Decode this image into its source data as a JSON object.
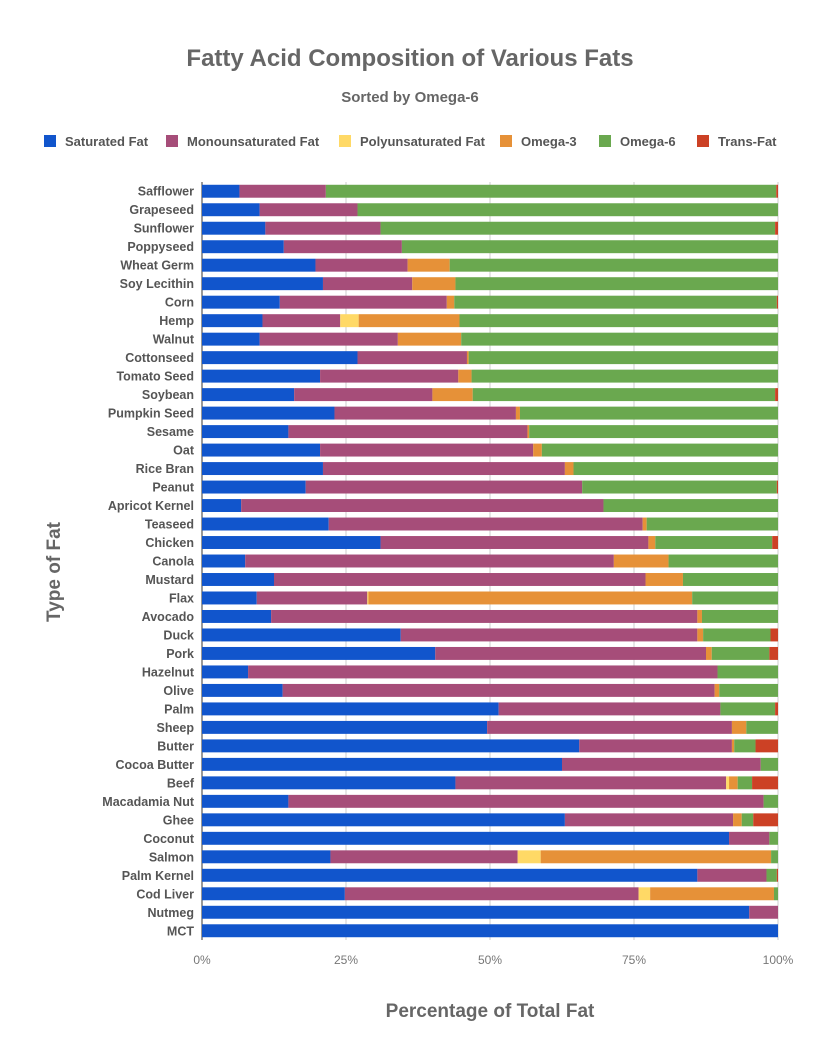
{
  "chart_data": {
    "type": "bar",
    "orientation": "horizontal",
    "stacked": true,
    "title": "Fatty Acid Composition of Various Fats",
    "subtitle": "Sorted by Omega-6",
    "xlabel": "Percentage of Total Fat",
    "ylabel": "Type of Fat",
    "xlim": [
      0,
      100
    ],
    "x_ticks": [
      "0%",
      "25%",
      "50%",
      "75%",
      "100%"
    ],
    "x_tick_values": [
      0,
      25,
      50,
      75,
      100
    ],
    "legend_position": "top",
    "grid": true,
    "categories": [
      "Safflower",
      "Grapeseed",
      "Sunflower",
      "Poppyseed",
      "Wheat Germ",
      "Soy Lecithin",
      "Corn",
      "Hemp",
      "Walnut",
      "Cottonseed",
      "Tomato Seed",
      "Soybean",
      "Pumpkin Seed",
      "Sesame",
      "Oat",
      "Rice Bran",
      "Peanut",
      "Apricot Kernel",
      "Teaseed",
      "Chicken",
      "Canola",
      "Mustard",
      "Flax",
      "Avocado",
      "Duck",
      "Pork",
      "Hazelnut",
      "Olive",
      "Palm",
      "Sheep",
      "Butter",
      "Cocoa Butter",
      "Beef",
      "Macadamia Nut",
      "Ghee",
      "Coconut",
      "Salmon",
      "Palm Kernel",
      "Cod Liver",
      "Nutmeg",
      "MCT"
    ],
    "series": [
      {
        "name": "Saturated Fat",
        "color": "#1155cc",
        "values": [
          6.5,
          10,
          11,
          14.2,
          19.7,
          21,
          13.5,
          10.5,
          10,
          27,
          20.5,
          16,
          23,
          15,
          20.5,
          21,
          18,
          6.8,
          22,
          31,
          7.5,
          12.5,
          9.5,
          12,
          34.5,
          40.5,
          8,
          14,
          51.5,
          49.5,
          65.5,
          62.5,
          44,
          15,
          63,
          91.5,
          22.3,
          86,
          24.8,
          95,
          100
        ]
      },
      {
        "name": "Monounsaturated Fat",
        "color": "#a64d79",
        "values": [
          15,
          17,
          20,
          20.5,
          16,
          15.5,
          29,
          13.5,
          24,
          19,
          24,
          24,
          31.5,
          41.5,
          37,
          42,
          48,
          62.9,
          54.5,
          46.5,
          64,
          64.5,
          19.2,
          74,
          51.5,
          47,
          81.5,
          75,
          38.5,
          42.5,
          26.5,
          34.5,
          47,
          82.5,
          29.2,
          7,
          32.5,
          12,
          51,
          5,
          0
        ]
      },
      {
        "name": "Polyunsaturated Fat",
        "color": "#ffd966",
        "values": [
          0,
          0,
          0,
          0,
          0,
          0,
          0,
          3.2,
          0,
          0,
          0,
          0,
          0,
          0,
          0,
          0,
          0,
          0,
          0,
          0,
          0,
          0,
          0.2,
          0,
          0,
          0,
          0,
          0,
          0,
          0,
          0,
          0,
          0.5,
          0,
          0,
          0,
          4,
          0,
          2,
          0,
          0
        ]
      },
      {
        "name": "Omega-3",
        "color": "#e69138",
        "values": [
          0,
          0,
          0,
          0,
          7.3,
          7.5,
          1.3,
          17.5,
          11,
          0.3,
          2.3,
          7,
          0.7,
          0.3,
          1.5,
          1.5,
          0,
          0,
          0.7,
          1.2,
          9.5,
          6.5,
          56.2,
          0.8,
          1,
          1,
          0,
          0.8,
          0,
          2.5,
          0.4,
          0,
          1.5,
          0,
          1.5,
          0,
          40,
          0,
          21.5,
          0,
          0
        ]
      },
      {
        "name": "Omega-6",
        "color": "#6aa84f",
        "values": [
          78.2,
          73,
          68.5,
          65.3,
          57,
          56,
          56,
          55.3,
          55,
          53.7,
          53.2,
          52.5,
          44.8,
          43.2,
          41,
          35.5,
          33.8,
          30.3,
          22.8,
          20.3,
          19,
          16.5,
          14.9,
          13.2,
          11.7,
          10,
          10.5,
          10.2,
          9.5,
          5.5,
          3.7,
          3,
          2.5,
          2.5,
          2,
          1.5,
          1.2,
          1.8,
          0.7,
          0,
          0
        ]
      },
      {
        "name": "Trans-Fat",
        "color": "#cc4125",
        "values": [
          0.3,
          0,
          0.5,
          0,
          0,
          0,
          0.2,
          0,
          0,
          0,
          0,
          0.5,
          0,
          0,
          0,
          0,
          0.2,
          0,
          0,
          1,
          0,
          0,
          0,
          0,
          1.3,
          1.5,
          0,
          0,
          0.5,
          0,
          3.9,
          0,
          4.5,
          0,
          4.3,
          0,
          0,
          0.2,
          0,
          0,
          0
        ]
      }
    ]
  }
}
